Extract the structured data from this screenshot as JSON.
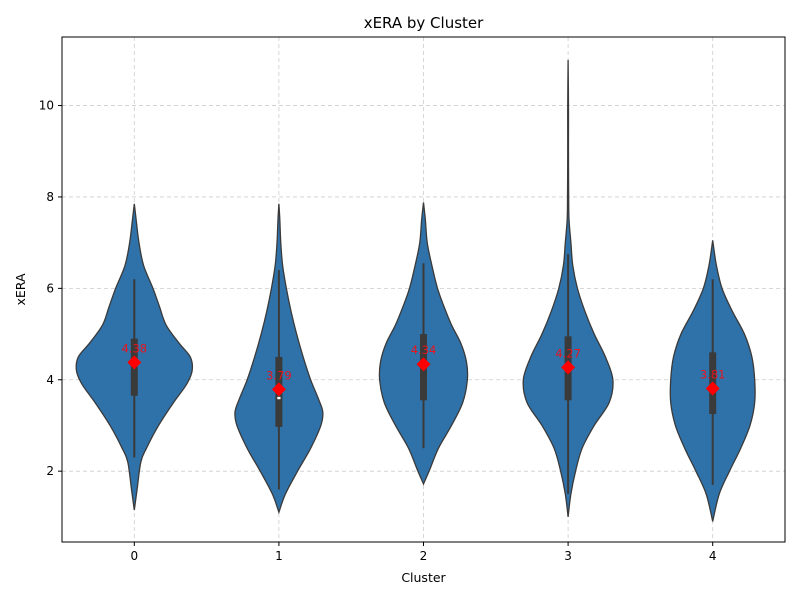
{
  "chart_data": {
    "type": "violin",
    "title": "xERA by Cluster",
    "xlabel": "Cluster",
    "ylabel": "xERA",
    "categories": [
      "0",
      "1",
      "2",
      "3",
      "4"
    ],
    "ylim": [
      0.45,
      11.5
    ],
    "yticks": [
      2,
      4,
      6,
      8,
      10
    ],
    "grid": true,
    "colors": {
      "violin": "#2f72aa",
      "outline": "#3a3a3a",
      "mean": "#ff0000",
      "mean_label": "#e8141c",
      "grid": "#cccccc"
    },
    "groups": [
      {
        "name": "0",
        "mean": 4.38,
        "mean_label": "4.38",
        "q1": 3.65,
        "median": 4.3,
        "q3": 4.9,
        "whisker_low": 2.3,
        "whisker_high": 6.2,
        "density": [
          [
            1.15,
            0.0
          ],
          [
            1.6,
            0.03
          ],
          [
            2.2,
            0.07
          ],
          [
            2.5,
            0.13
          ],
          [
            3.0,
            0.26
          ],
          [
            3.5,
            0.42
          ],
          [
            3.9,
            0.56
          ],
          [
            4.2,
            0.62
          ],
          [
            4.5,
            0.6
          ],
          [
            4.8,
            0.48
          ],
          [
            5.2,
            0.34
          ],
          [
            5.6,
            0.27
          ],
          [
            6.0,
            0.2
          ],
          [
            6.5,
            0.1
          ],
          [
            7.0,
            0.05
          ],
          [
            7.5,
            0.02
          ],
          [
            7.85,
            0.0
          ]
        ]
      },
      {
        "name": "1",
        "mean": 3.79,
        "mean_label": "3.79",
        "q1": 2.97,
        "median": 3.6,
        "q3": 4.5,
        "whisker_low": 1.6,
        "whisker_high": 6.4,
        "density": [
          [
            1.1,
            0.0
          ],
          [
            1.5,
            0.07
          ],
          [
            2.0,
            0.2
          ],
          [
            2.5,
            0.34
          ],
          [
            3.0,
            0.45
          ],
          [
            3.3,
            0.47
          ],
          [
            3.6,
            0.42
          ],
          [
            4.0,
            0.34
          ],
          [
            4.5,
            0.26
          ],
          [
            5.0,
            0.19
          ],
          [
            5.5,
            0.13
          ],
          [
            6.0,
            0.08
          ],
          [
            6.5,
            0.04
          ],
          [
            7.0,
            0.02
          ],
          [
            7.5,
            0.01
          ],
          [
            7.85,
            0.0
          ]
        ]
      },
      {
        "name": "2",
        "mean": 4.34,
        "mean_label": "4.34",
        "q1": 3.55,
        "median": 4.35,
        "q3": 5.0,
        "whisker_low": 2.5,
        "whisker_high": 6.55,
        "density": [
          [
            1.72,
            0.0
          ],
          [
            2.0,
            0.06
          ],
          [
            2.5,
            0.16
          ],
          [
            3.0,
            0.3
          ],
          [
            3.5,
            0.42
          ],
          [
            4.0,
            0.47
          ],
          [
            4.4,
            0.46
          ],
          [
            4.8,
            0.4
          ],
          [
            5.2,
            0.3
          ],
          [
            5.6,
            0.22
          ],
          [
            6.0,
            0.15
          ],
          [
            6.5,
            0.09
          ],
          [
            7.0,
            0.04
          ],
          [
            7.5,
            0.02
          ],
          [
            7.88,
            0.0
          ]
        ]
      },
      {
        "name": "3",
        "mean": 4.27,
        "mean_label": "4.27",
        "q1": 3.55,
        "median": 4.2,
        "q3": 4.95,
        "whisker_low": 1.5,
        "whisker_high": 6.75,
        "density": [
          [
            1.0,
            0.0
          ],
          [
            1.5,
            0.03
          ],
          [
            2.0,
            0.08
          ],
          [
            2.5,
            0.15
          ],
          [
            3.0,
            0.28
          ],
          [
            3.5,
            0.44
          ],
          [
            4.0,
            0.48
          ],
          [
            4.5,
            0.4
          ],
          [
            5.0,
            0.28
          ],
          [
            5.5,
            0.18
          ],
          [
            6.0,
            0.1
          ],
          [
            6.5,
            0.05
          ],
          [
            7.0,
            0.03
          ],
          [
            7.5,
            0.01
          ],
          [
            8.0,
            0.006
          ],
          [
            9.0,
            0.004
          ],
          [
            10.0,
            0.004
          ],
          [
            11.0,
            0.0
          ]
        ]
      },
      {
        "name": "4",
        "mean": 3.81,
        "mean_label": "3.81",
        "q1": 3.25,
        "median": 3.85,
        "q3": 4.6,
        "whisker_low": 1.7,
        "whisker_high": 6.2,
        "density": [
          [
            0.9,
            0.0
          ],
          [
            1.5,
            0.07
          ],
          [
            2.0,
            0.18
          ],
          [
            2.5,
            0.3
          ],
          [
            3.0,
            0.4
          ],
          [
            3.5,
            0.45
          ],
          [
            4.0,
            0.45
          ],
          [
            4.5,
            0.42
          ],
          [
            5.0,
            0.34
          ],
          [
            5.5,
            0.21
          ],
          [
            6.0,
            0.1
          ],
          [
            6.5,
            0.04
          ],
          [
            7.05,
            0.0
          ]
        ]
      }
    ]
  }
}
